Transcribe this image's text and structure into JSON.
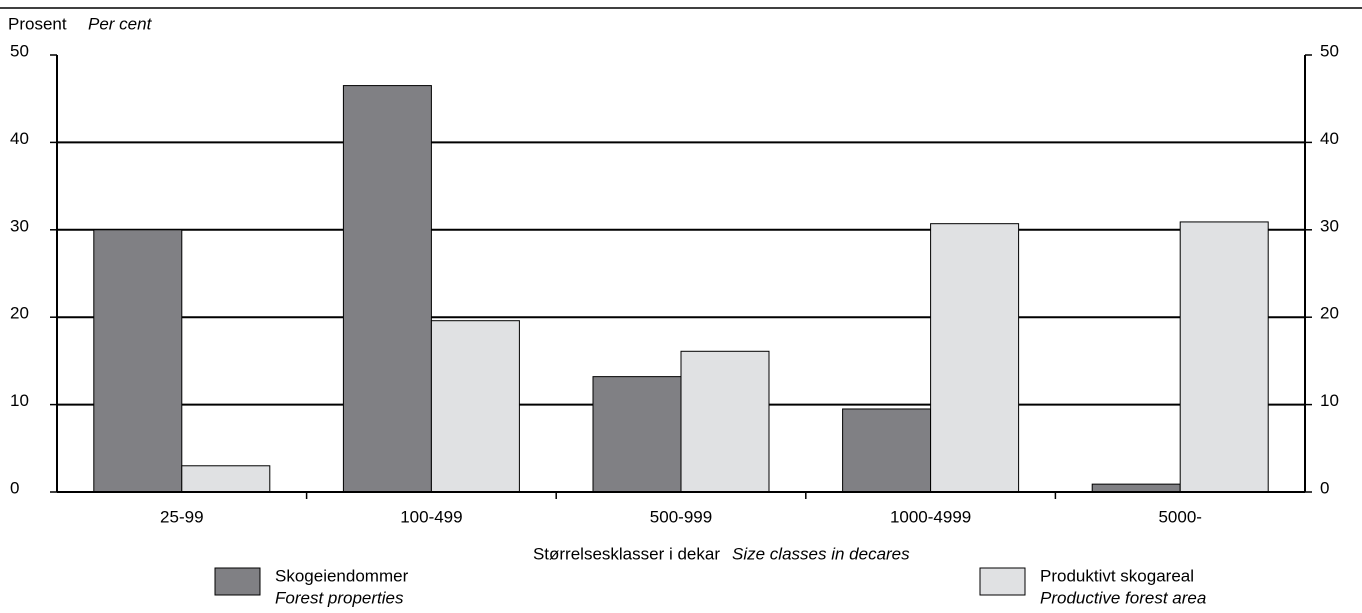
{
  "chart_data": {
    "type": "bar",
    "ylabel": "Prosent",
    "ylabel_en": "Per cent",
    "xlabel": "Størrelsesklasser i dekar",
    "xlabel_en": "Size classes in decares",
    "categories": [
      "25-99",
      "100-499",
      "500-999",
      "1000-4999",
      "5000-"
    ],
    "series": [
      {
        "name": "Skogeiendommer",
        "name_en": "Forest properties",
        "color": "#808084",
        "values": [
          30,
          46.5,
          13.2,
          9.5,
          0.9
        ]
      },
      {
        "name": "Produktivt skogareal",
        "name_en": "Productive forest area",
        "color": "#e0e1e3",
        "values": [
          3.0,
          19.6,
          16.1,
          30.7,
          30.9
        ]
      }
    ],
    "ylim": [
      0,
      50
    ],
    "yticks": [
      0,
      10,
      20,
      30,
      40,
      50
    ],
    "grid": true
  }
}
